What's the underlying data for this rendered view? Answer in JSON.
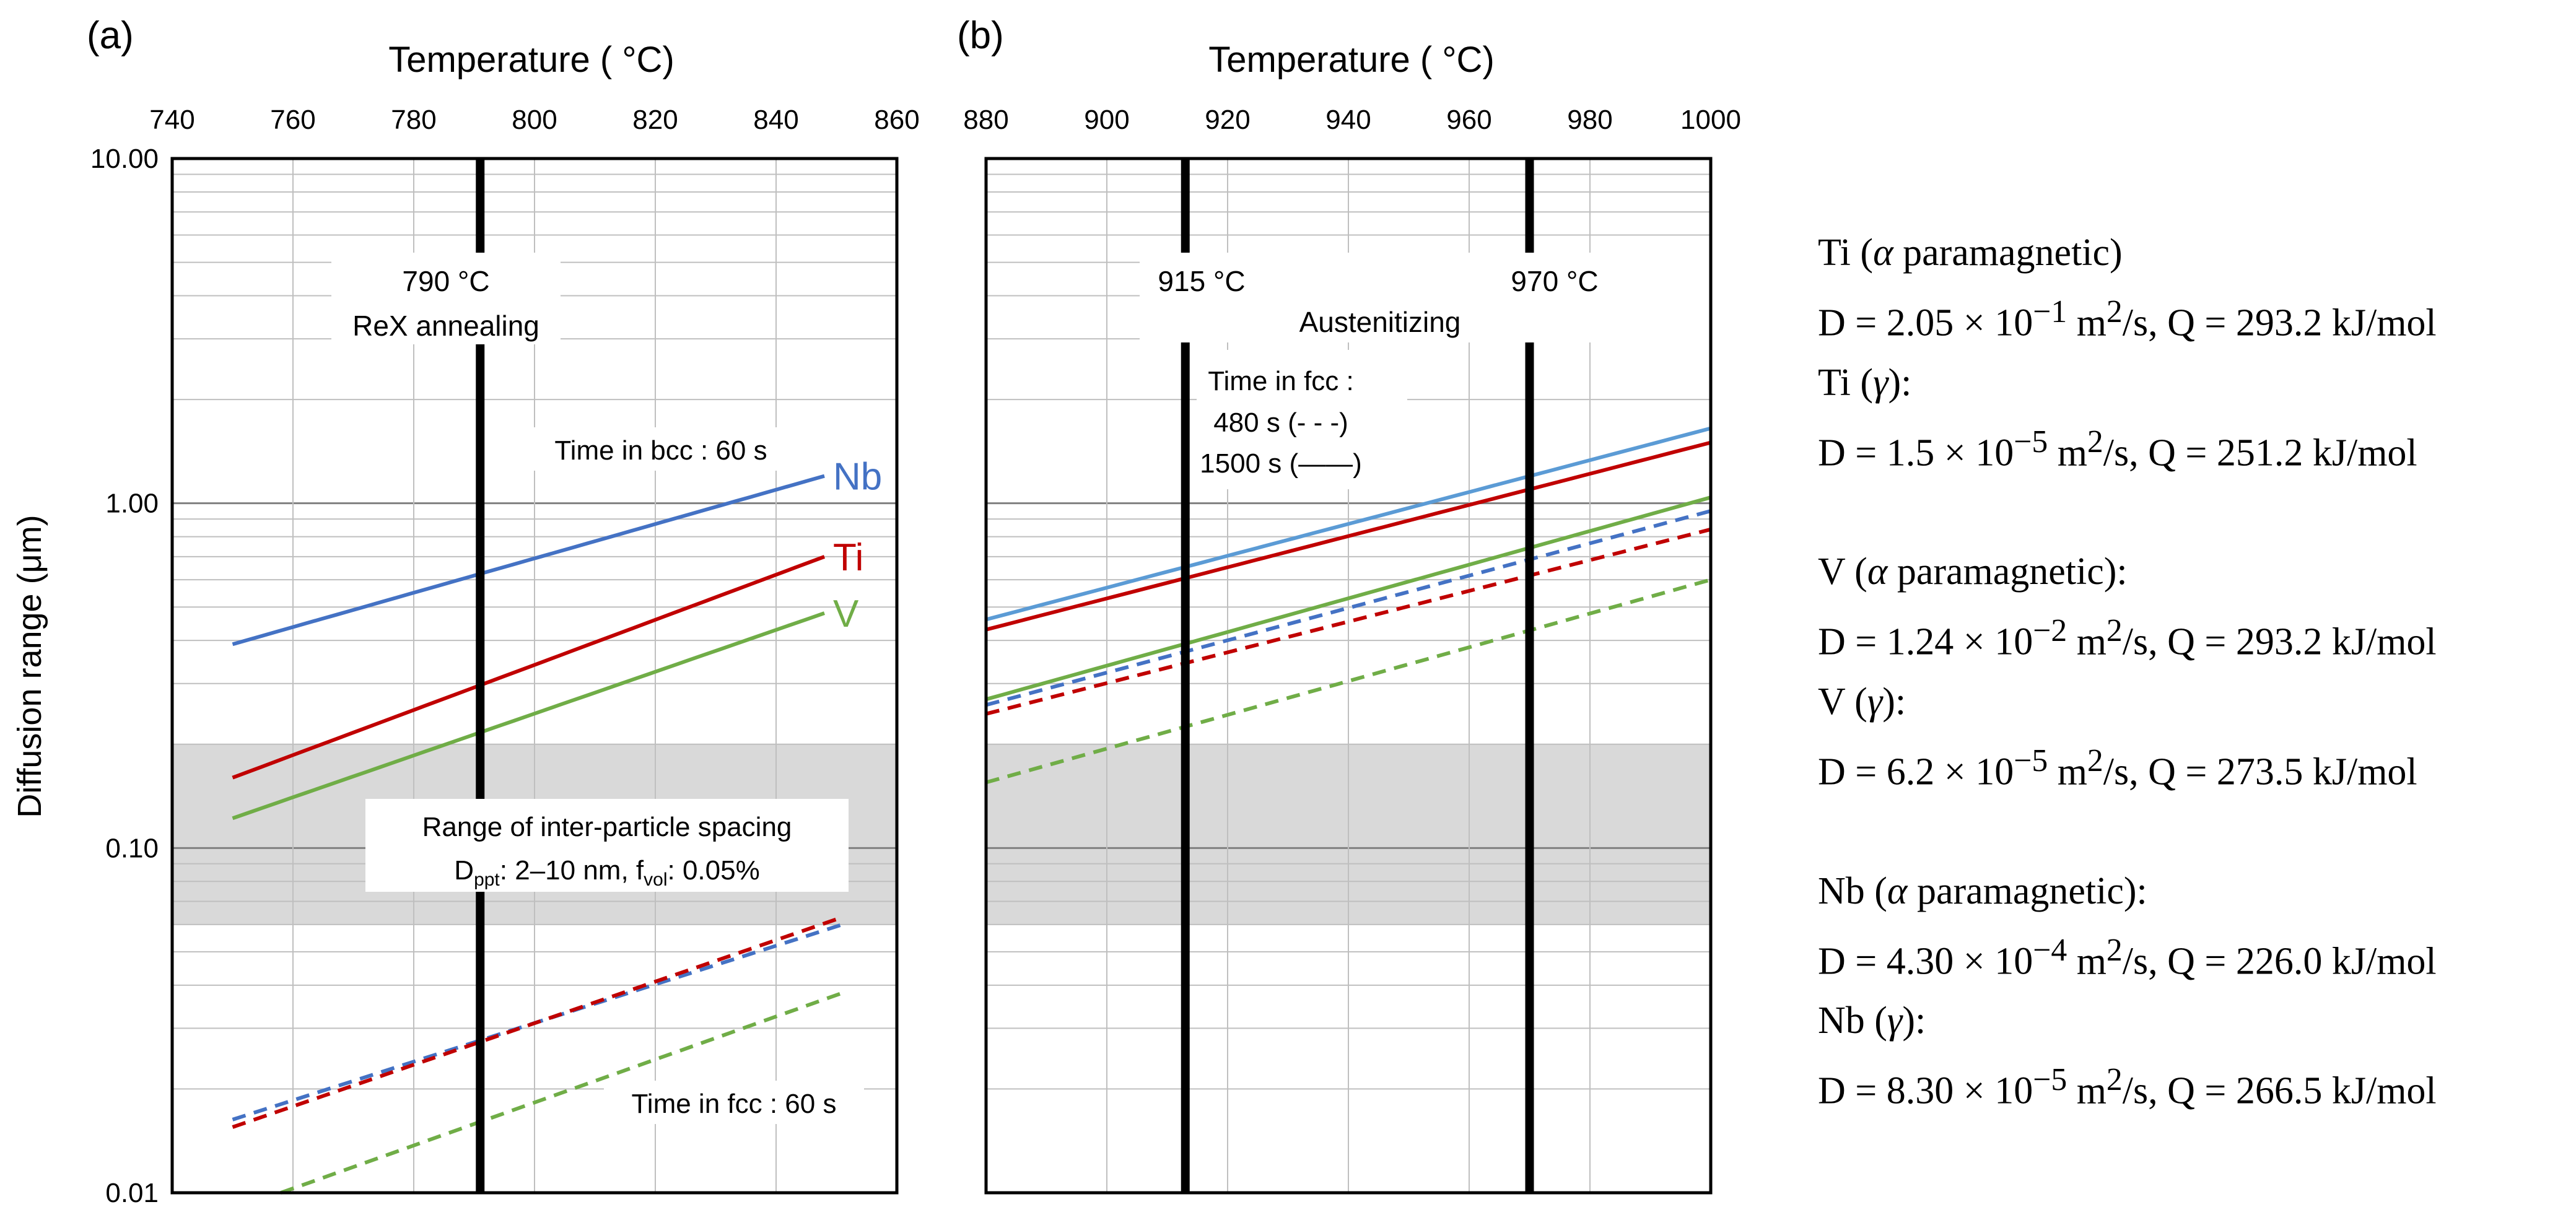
{
  "chart_data": [
    {
      "type": "line",
      "panel_label": "(a)",
      "xlabel": "Temperature ( °C)",
      "ylabel": "Diffusion range (μm)",
      "xlim": [
        740,
        860
      ],
      "ylim": [
        0.01,
        10
      ],
      "yscale": "log",
      "x_ticks": [
        740,
        760,
        780,
        800,
        820,
        840,
        860
      ],
      "x_tick_labels": [
        "740",
        "760",
        "780",
        "800",
        "820",
        "840",
        "860"
      ],
      "y_tick_labels": [
        "10.00",
        "1.00",
        "0.10",
        "0.01"
      ],
      "y_tick_values": [
        10,
        1,
        0.1,
        0.01
      ],
      "grid": true,
      "shaded_band": {
        "ymin": 0.06,
        "ymax": 0.2
      },
      "vertical_lines": [
        {
          "x": 791,
          "label_line1": "790 °C",
          "label_line2": "ReX annealing"
        }
      ],
      "band_label_line1": "Range of inter-particle spacing",
      "band_label_line2_main": "D",
      "band_label_line2_sub": "ppt",
      "band_label_line2_mid": ": 2–10 nm, f",
      "band_label_line2_sub2": "vol",
      "band_label_line2_end": ": 0.05%",
      "annotations": [
        {
          "text": "Time in bcc : 60 s"
        },
        {
          "text": "Time in fcc : 60 s"
        }
      ],
      "series": [
        {
          "name": "Nb",
          "label": "Nb",
          "style": "solid",
          "color": "#4472C4",
          "x": [
            750,
            848
          ],
          "y": [
            0.39,
            1.2
          ]
        },
        {
          "name": "Ti",
          "label": "Ti",
          "style": "solid",
          "color": "#C00000",
          "x": [
            750,
            848
          ],
          "y": [
            0.16,
            0.7
          ]
        },
        {
          "name": "V",
          "label": "V",
          "style": "solid",
          "color": "#70AD47",
          "x": [
            750,
            848
          ],
          "y": [
            0.122,
            0.48
          ]
        },
        {
          "name": "Nb (fcc)",
          "style": "dashed",
          "color": "#4472C4",
          "x": [
            750,
            851
          ],
          "y": [
            0.0163,
            0.06
          ]
        },
        {
          "name": "Ti (fcc)",
          "style": "dashed",
          "color": "#C00000",
          "x": [
            750,
            851
          ],
          "y": [
            0.0155,
            0.063
          ]
        },
        {
          "name": "V (fcc)",
          "style": "dashed",
          "color": "#70AD47",
          "x": [
            758,
            851
          ],
          "y": [
            0.01,
            0.038
          ]
        }
      ]
    },
    {
      "type": "line",
      "panel_label": "(b)",
      "xlabel": "Temperature ( °C)",
      "xlim": [
        880,
        1000
      ],
      "ylim": [
        0.01,
        10
      ],
      "yscale": "log",
      "x_ticks": [
        880,
        900,
        920,
        940,
        960,
        980,
        1000
      ],
      "x_tick_labels": [
        "880",
        "900",
        "920",
        "940",
        "960",
        "980",
        "1000"
      ],
      "grid": true,
      "shaded_band": {
        "ymin": 0.06,
        "ymax": 0.2
      },
      "vertical_lines": [
        {
          "x": 913,
          "label": "915 °C"
        },
        {
          "x": 970,
          "label": "970 °C"
        }
      ],
      "austenitizing_label": "Austenitizing",
      "time_label_line1": "Time in fcc :",
      "time_label_line2": "480 s (- - -)",
      "time_label_line3": "1500 s (——)",
      "series": [
        {
          "name": "Nb 1500 s",
          "style": "solid",
          "color": "#5B9BD5",
          "x": [
            880,
            1000
          ],
          "y": [
            0.46,
            1.65
          ]
        },
        {
          "name": "Ti 1500 s",
          "style": "solid",
          "color": "#C00000",
          "x": [
            880,
            1000
          ],
          "y": [
            0.43,
            1.5
          ]
        },
        {
          "name": "V 1500 s",
          "style": "solid",
          "color": "#70AD47",
          "x": [
            880,
            1000
          ],
          "y": [
            0.27,
            1.04
          ]
        },
        {
          "name": "Nb 480 s",
          "style": "dashed",
          "color": "#4472C4",
          "x": [
            880,
            1000
          ],
          "y": [
            0.26,
            0.95
          ]
        },
        {
          "name": "Ti 480 s",
          "style": "dashed",
          "color": "#C00000",
          "x": [
            880,
            1000
          ],
          "y": [
            0.245,
            0.84
          ]
        },
        {
          "name": "V 480 s",
          "style": "dashed",
          "color": "#70AD47",
          "x": [
            880,
            1000
          ],
          "y": [
            0.155,
            0.6
          ]
        }
      ]
    }
  ],
  "notes": [
    {
      "line1": {
        "main": "Ti (",
        "italic": "α",
        "rest": " paramagnetic)"
      },
      "line2": {
        "a": "D = 2.05 × 10",
        "sup": "−1",
        "b": " m",
        "sup2": "2",
        "c": "/s, Q = 293.2 kJ/mol"
      },
      "line3": {
        "main": "Ti (",
        "italic": "γ",
        "rest": "):"
      },
      "line4": {
        "a": "D = 1.5 × 10",
        "sup": "−5",
        "b": " m",
        "sup2": "2",
        "c": "/s, Q = 251.2 kJ/mol"
      }
    },
    {
      "line1": {
        "main": "V (",
        "italic": "α",
        "rest": " paramagnetic):"
      },
      "line2": {
        "a": "D = 1.24 × 10",
        "sup": "−2",
        "b": " m",
        "sup2": "2",
        "c": "/s, Q = 293.2 kJ/mol"
      },
      "line3": {
        "main": "V (",
        "italic": "γ",
        "rest": "):"
      },
      "line4": {
        "a": "D = 6.2 × 10",
        "sup": "−5",
        "b": " m",
        "sup2": "2",
        "c": "/s, Q = 273.5 kJ/mol"
      }
    },
    {
      "line1": {
        "main": "Nb (",
        "italic": "α",
        "rest": " paramagnetic):"
      },
      "line2": {
        "a": "D = 4.30 × 10",
        "sup": "−4",
        "b": " m",
        "sup2": "2",
        "c": "/s, Q = 226.0 kJ/mol"
      },
      "line3": {
        "main": "Nb (",
        "italic": "γ",
        "rest": "):"
      },
      "line4": {
        "a": "D = 8.30 × 10",
        "sup": "−5",
        "b": " m",
        "sup2": "2",
        "c": "/s, Q = 266.5 kJ/mol"
      }
    }
  ]
}
